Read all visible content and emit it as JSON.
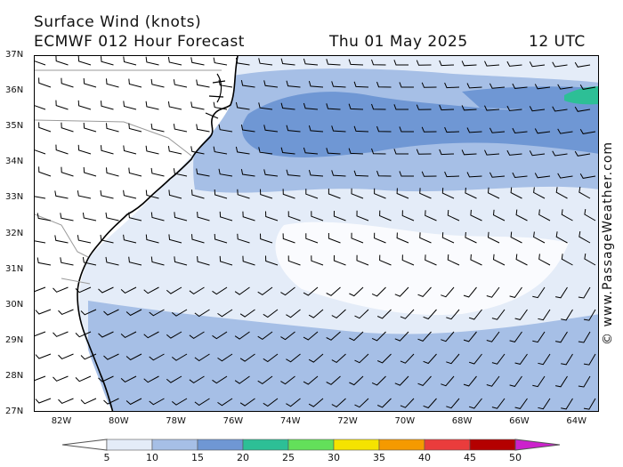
{
  "header": {
    "title": "Surface Wind (knots)",
    "model_forecast": "ECMWF 012 Hour Forecast",
    "date": "Thu 01 May 2025",
    "time": "12 UTC"
  },
  "map": {
    "lat_labels": [
      "37N",
      "36N",
      "35N",
      "34N",
      "33N",
      "32N",
      "31N",
      "30N",
      "29N",
      "28N",
      "27N"
    ],
    "lon_labels": [
      "82W",
      "80W",
      "78W",
      "76W",
      "74W",
      "72W",
      "70W",
      "68W",
      "66W",
      "64W"
    ],
    "land_color": "#ffffff",
    "coast_color": "#000000",
    "state_border_color": "#9a9a9a",
    "wind_barb_color": "#000000"
  },
  "legend": {
    "labels": [
      "5",
      "10",
      "15",
      "20",
      "25",
      "30",
      "35",
      "40",
      "45",
      "50"
    ],
    "colors": [
      "#e4ecf8",
      "#a6bfe6",
      "#6f97d4",
      "#2dbf96",
      "#63e05a",
      "#f5e300",
      "#f59a00",
      "#ea3c3c",
      "#b40000",
      "#cc22cc"
    ],
    "arrow_left_color": "#ffffff",
    "arrow_right_color": "#cc22cc"
  },
  "credit": "© www.PassageWeather.com"
}
